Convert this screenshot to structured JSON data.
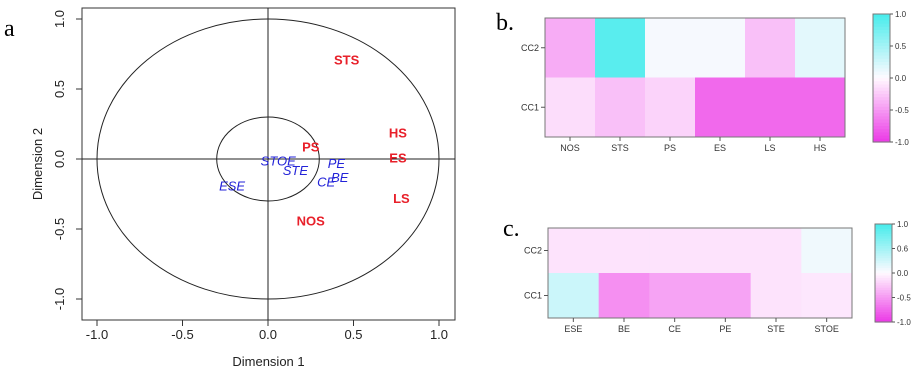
{
  "panel_labels": {
    "a": "a",
    "b": "b.",
    "c": "c."
  },
  "chart_data": [
    {
      "type": "scatter",
      "panel": "a",
      "xlabel": "Dimension 1",
      "ylabel": "Dimension 2",
      "xlim": [
        -1.1,
        1.1
      ],
      "ylim": [
        -1.1,
        1.1
      ],
      "xticks": [
        -1.0,
        -0.5,
        0.0,
        0.5,
        1.0
      ],
      "yticks": [
        -1.0,
        -0.5,
        0.0,
        0.5,
        1.0
      ],
      "xtick_labels": [
        "-1.0",
        "-0.5",
        "0.0",
        "0.5",
        "1.0"
      ],
      "ytick_labels": [
        "-1.0",
        "-0.5",
        "0.0",
        "0.5",
        "1.0"
      ],
      "circles": [
        1.0,
        0.3
      ],
      "colors": {
        "group1": "#e8202a",
        "group2": "#2323d8"
      },
      "points": [
        {
          "label": "STS",
          "x": 0.46,
          "y": 0.71,
          "group": "group1"
        },
        {
          "label": "HS",
          "x": 0.76,
          "y": 0.19,
          "group": "group1"
        },
        {
          "label": "ES",
          "x": 0.76,
          "y": 0.01,
          "group": "group1"
        },
        {
          "label": "PS",
          "x": 0.25,
          "y": 0.09,
          "group": "group1"
        },
        {
          "label": "LS",
          "x": 0.78,
          "y": -0.28,
          "group": "group1"
        },
        {
          "label": "NOS",
          "x": 0.25,
          "y": -0.44,
          "group": "group1"
        },
        {
          "label": "STOE",
          "x": 0.06,
          "y": -0.01,
          "group": "group2"
        },
        {
          "label": "STE",
          "x": 0.16,
          "y": -0.08,
          "group": "group2"
        },
        {
          "label": "PE",
          "x": 0.4,
          "y": -0.03,
          "group": "group2"
        },
        {
          "label": "CE",
          "x": 0.34,
          "y": -0.16,
          "group": "group2"
        },
        {
          "label": "BE",
          "x": 0.42,
          "y": -0.13,
          "group": "group2"
        },
        {
          "label": "ESE",
          "x": -0.21,
          "y": -0.19,
          "group": "group2"
        }
      ]
    },
    {
      "type": "heatmap",
      "panel": "b",
      "columns": [
        "NOS",
        "STS",
        "PS",
        "ES",
        "LS",
        "HS"
      ],
      "rows": [
        "CC2",
        "CC1"
      ],
      "values": [
        [
          -0.4,
          0.9,
          0.05,
          0.05,
          -0.3,
          0.15
        ],
        [
          -0.15,
          -0.3,
          -0.2,
          -0.75,
          -0.75,
          -0.75
        ]
      ],
      "colorbar_ticks": [
        "1.0",
        "0.5",
        "0.0",
        "-0.5",
        "-1.0"
      ],
      "colorbar_range": [
        -1.0,
        1.0
      ]
    },
    {
      "type": "heatmap",
      "panel": "c",
      "columns": [
        "ESE",
        "BE",
        "CE",
        "PE",
        "STE",
        "STOE"
      ],
      "rows": [
        "CC2",
        "CC1"
      ],
      "values": [
        [
          -0.12,
          -0.12,
          -0.12,
          -0.12,
          -0.12,
          0.08
        ],
        [
          0.28,
          -0.55,
          -0.45,
          -0.45,
          -0.12,
          -0.1
        ]
      ],
      "colorbar_ticks": [
        "1.0",
        "0.6",
        "0.0",
        "-0.5",
        "-1.0"
      ],
      "colorbar_range": [
        -1.0,
        1.0
      ]
    }
  ]
}
